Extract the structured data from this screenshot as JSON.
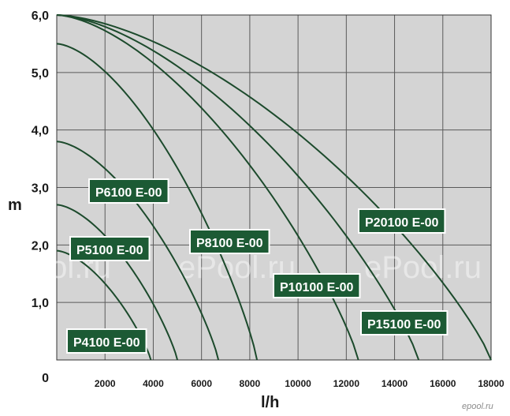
{
  "chart_data": {
    "type": "line",
    "xlabel": "l/h",
    "ylabel": "m",
    "xlim": [
      0,
      18000
    ],
    "ylim": [
      0,
      6
    ],
    "x_ticks": [
      "2000",
      "4000",
      "6000",
      "8000",
      "10000",
      "12000",
      "14000",
      "16000",
      "18000"
    ],
    "x_tick_values": [
      2000,
      4000,
      6000,
      8000,
      10000,
      12000,
      14000,
      16000,
      18000
    ],
    "y_ticks": [
      "1,0",
      "2,0",
      "3,0",
      "4,0",
      "5,0",
      "6,0"
    ],
    "y_tick_values": [
      1,
      2,
      3,
      4,
      5,
      6
    ],
    "origin_label": "0",
    "grid": true,
    "series": [
      {
        "name": "P4100 E-00",
        "max_head": 1.9,
        "max_flow": 3900
      },
      {
        "name": "P5100 E-00",
        "max_head": 2.7,
        "max_flow": 5000
      },
      {
        "name": "P6100 E-00",
        "max_head": 3.8,
        "max_flow": 6700
      },
      {
        "name": "P8100 E-00",
        "max_head": 5.5,
        "max_flow": 8300
      },
      {
        "name": "P10100 E-00",
        "max_head": 6.0,
        "max_flow": 12500
      },
      {
        "name": "P15100 E-00",
        "max_head": 6.0,
        "max_flow": 15000
      },
      {
        "name": "P20100 E-00",
        "max_head": 6.0,
        "max_flow": 18000
      }
    ],
    "watermark": "ePool.ru",
    "logo": "epool.ru",
    "colors": {
      "background": "#d4d4d4",
      "grid": "#5a5a5a",
      "curve": "#1c4a2c",
      "label_fill": "#1c5a34",
      "label_border": "#ffffff"
    }
  }
}
